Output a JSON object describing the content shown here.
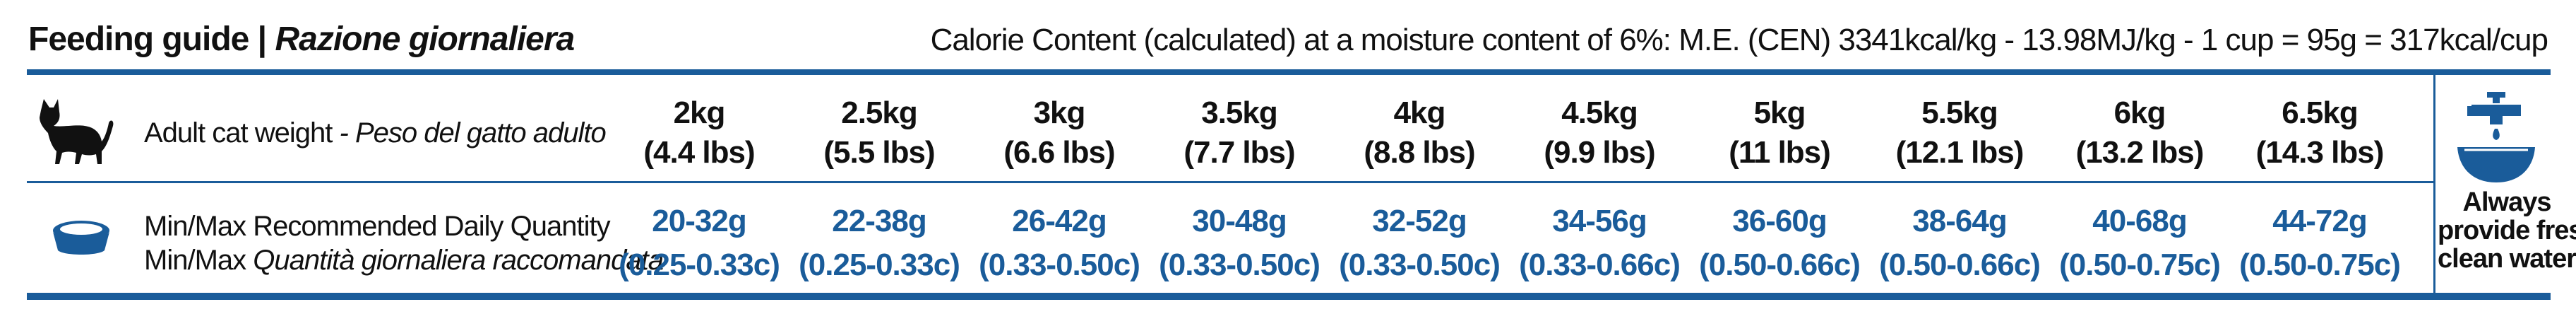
{
  "header": {
    "title_main": "Feeding guide",
    "title_sep": " | ",
    "title_italic": "Razione giornaliera",
    "calorie_text": "Calorie Content (calculated) at a moisture content of 6%: M.E. (CEN) 3341kcal/kg - 13.98MJ/kg - 1 cup = 95g = 317kcal/cup"
  },
  "rows": {
    "weight_label": "Adult cat weight",
    "weight_label_it": " - Peso del gatto adulto",
    "quantity_label_en": "Min/Max Recommended Daily Quantity",
    "quantity_label_it_prefix": "Min/Max ",
    "quantity_label_it": "Quantità giornaliera raccomandata"
  },
  "columns": [
    {
      "kg": "2kg",
      "lbs": "(4.4 lbs)",
      "grams": "20-32g",
      "cups": "(0.25-0.33c)"
    },
    {
      "kg": "2.5kg",
      "lbs": "(5.5 lbs)",
      "grams": "22-38g",
      "cups": "(0.25-0.33c)"
    },
    {
      "kg": "3kg",
      "lbs": "(6.6 lbs)",
      "grams": "26-42g",
      "cups": "(0.33-0.50c)"
    },
    {
      "kg": "3.5kg",
      "lbs": "(7.7 lbs)",
      "grams": "30-48g",
      "cups": "(0.33-0.50c)"
    },
    {
      "kg": "4kg",
      "lbs": "(8.8 lbs)",
      "grams": "32-52g",
      "cups": "(0.33-0.50c)"
    },
    {
      "kg": "4.5kg",
      "lbs": "(9.9 lbs)",
      "grams": "34-56g",
      "cups": "(0.33-0.66c)"
    },
    {
      "kg": "5kg",
      "lbs": "(11 lbs)",
      "grams": "36-60g",
      "cups": "(0.50-0.66c)"
    },
    {
      "kg": "5.5kg",
      "lbs": "(12.1 lbs)",
      "grams": "38-64g",
      "cups": "(0.50-0.66c)"
    },
    {
      "kg": "6kg",
      "lbs": "(13.2 lbs)",
      "grams": "40-68g",
      "cups": "(0.50-0.75c)"
    },
    {
      "kg": "6.5kg",
      "lbs": "(14.3 lbs)",
      "grams": "44-72g",
      "cups": "(0.50-0.75c)"
    }
  ],
  "water": {
    "line1": "Always",
    "line2": "provide fresh",
    "line3": "clean water"
  },
  "icons": {
    "cat": "cat-silhouette-icon",
    "bowl": "food-bowl-icon",
    "tap": "water-tap-icon"
  },
  "colors": {
    "accent": "#1a5c9a",
    "text": "#111111"
  }
}
